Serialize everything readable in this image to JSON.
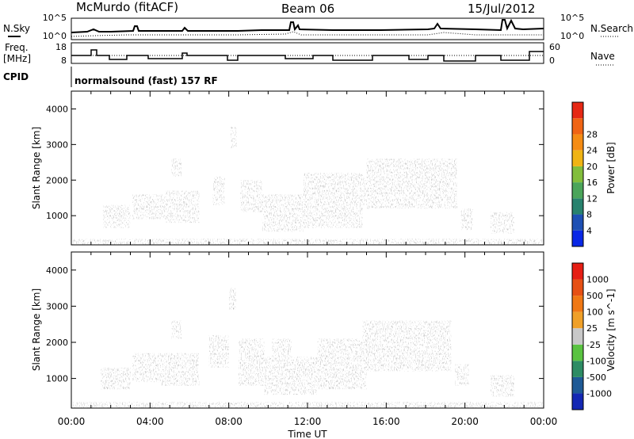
{
  "header": {
    "station": "McMurdo (fitACF)",
    "beam": "Beam 06",
    "date": "15/Jul/2012"
  },
  "status_panels": {
    "nsky_label": "N.Sky",
    "nsearch_label": "N.Search",
    "noise_ticks": [
      "10^5",
      "10^0"
    ],
    "freq_label": "Freq.",
    "freq_unit": "[MHz]",
    "freq_ticks": [
      "18",
      "8"
    ],
    "nave_label": "Nave",
    "nave_ticks": [
      "60",
      "0"
    ],
    "cpid_label": "CPID",
    "cpid_text": "normalsound (fast) 157 RF"
  },
  "chart_data": [
    {
      "type": "heatmap",
      "parameter": "Power",
      "xlabel": "",
      "ylabel": "Slant Range [km]",
      "x_ticks": [
        "00:00",
        "04:00",
        "08:00",
        "12:00",
        "16:00",
        "20:00",
        "00:00"
      ],
      "xlim": [
        0,
        24
      ],
      "ylim": [
        180,
        4500
      ],
      "y_ticks": [
        1000,
        2000,
        3000,
        4000
      ],
      "colorbar": {
        "label": "Power [dB]",
        "ticks": [
          "4",
          "8",
          "12",
          "16",
          "20",
          "24",
          "28"
        ],
        "colors": [
          "#0a28e6",
          "#1e50b4",
          "#28826e",
          "#4ba55a",
          "#82be3c",
          "#f0b414",
          "#f58c14",
          "#f06414",
          "#e62814"
        ]
      },
      "echo_regions": [
        {
          "t": [
            0.0,
            24.0
          ],
          "r": [
            180,
            350
          ],
          "v": 6
        },
        {
          "t": [
            1.6,
            3.0
          ],
          "r": [
            650,
            1300
          ],
          "v": 10
        },
        {
          "t": [
            3.1,
            4.9
          ],
          "r": [
            900,
            1600
          ],
          "v": 18
        },
        {
          "t": [
            4.8,
            6.5
          ],
          "r": [
            800,
            1700
          ],
          "v": 16
        },
        {
          "t": [
            5.1,
            5.6
          ],
          "r": [
            2100,
            2600
          ],
          "v": 14
        },
        {
          "t": [
            7.2,
            7.8
          ],
          "r": [
            1300,
            2100
          ],
          "v": 9
        },
        {
          "t": [
            8.1,
            8.4
          ],
          "r": [
            2900,
            3500
          ],
          "v": 10
        },
        {
          "t": [
            8.6,
            9.7
          ],
          "r": [
            1100,
            2000
          ],
          "v": 14
        },
        {
          "t": [
            9.7,
            11.8
          ],
          "r": [
            550,
            1600
          ],
          "v": 26
        },
        {
          "t": [
            11.8,
            14.8
          ],
          "r": [
            650,
            2200
          ],
          "v": 22
        },
        {
          "t": [
            13.0,
            15.0
          ],
          "r": [
            1300,
            2100
          ],
          "v": 16
        },
        {
          "t": [
            15.0,
            19.6
          ],
          "r": [
            1200,
            2600
          ],
          "v": 13
        },
        {
          "t": [
            19.8,
            20.4
          ],
          "r": [
            600,
            1200
          ],
          "v": 20
        },
        {
          "t": [
            21.3,
            22.5
          ],
          "r": [
            500,
            1100
          ],
          "v": 11
        }
      ]
    },
    {
      "type": "heatmap",
      "parameter": "Velocity",
      "xlabel": "Time UT",
      "ylabel": "Slant Range [km]",
      "x_ticks": [
        "00:00",
        "04:00",
        "08:00",
        "12:00",
        "16:00",
        "20:00",
        "00:00"
      ],
      "xlim": [
        0,
        24
      ],
      "ylim": [
        180,
        4500
      ],
      "y_ticks": [
        1000,
        2000,
        3000,
        4000
      ],
      "colorbar": {
        "label": "Velocity [m s^-1]",
        "ticks": [
          "1000",
          "500",
          "100",
          "25",
          "-25",
          "-100",
          "-500",
          "-1000"
        ],
        "colors": [
          "#1428b4",
          "#1e5a96",
          "#2d8c64",
          "#5ac341",
          "#c8c8c8",
          "#f0a028",
          "#f07814",
          "#e65014",
          "#e61e14"
        ]
      },
      "echo_regions": [
        {
          "t": [
            0.0,
            24.0
          ],
          "r": [
            180,
            350
          ],
          "v": 40
        },
        {
          "t": [
            1.5,
            3.0
          ],
          "r": [
            700,
            1300
          ],
          "v": 300
        },
        {
          "t": [
            3.1,
            4.5
          ],
          "r": [
            900,
            1700
          ],
          "v": -300
        },
        {
          "t": [
            4.5,
            6.5
          ],
          "r": [
            800,
            1700
          ],
          "v": 300
        },
        {
          "t": [
            5.1,
            5.6
          ],
          "r": [
            2100,
            2600
          ],
          "v": 200
        },
        {
          "t": [
            7.0,
            8.0
          ],
          "r": [
            1300,
            2200
          ],
          "v": 200
        },
        {
          "t": [
            8.0,
            8.4
          ],
          "r": [
            2900,
            3500
          ],
          "v": 150
        },
        {
          "t": [
            8.5,
            9.8
          ],
          "r": [
            800,
            2100
          ],
          "v": 800
        },
        {
          "t": [
            9.8,
            12.5
          ],
          "r": [
            550,
            1600
          ],
          "v": 250
        },
        {
          "t": [
            10.2,
            11.2
          ],
          "r": [
            1500,
            2100
          ],
          "v": 700
        },
        {
          "t": [
            12.5,
            15.0
          ],
          "r": [
            700,
            2100
          ],
          "v": 250
        },
        {
          "t": [
            14.8,
            19.3
          ],
          "r": [
            1200,
            2600
          ],
          "v": -450
        },
        {
          "t": [
            19.5,
            20.2
          ],
          "r": [
            800,
            1400
          ],
          "v": -300
        },
        {
          "t": [
            21.3,
            22.5
          ],
          "r": [
            500,
            1100
          ],
          "v": -350
        }
      ]
    }
  ]
}
